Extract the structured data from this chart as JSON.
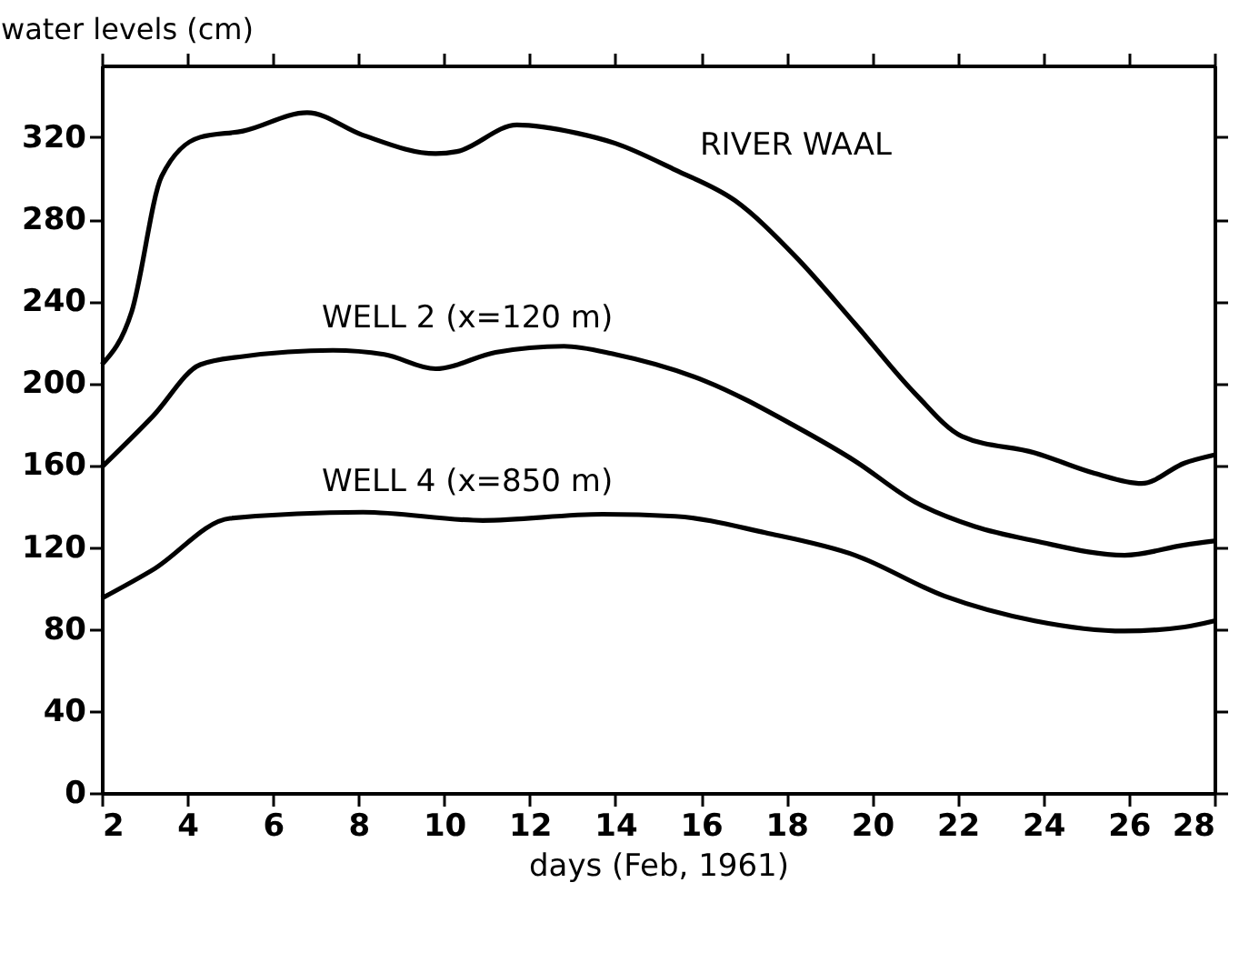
{
  "chart_data": {
    "type": "line",
    "xlabel": "days (Feb, 1961)",
    "ylabel": "water levels (cm)",
    "xlim": [
      2,
      28
    ],
    "ylim": [
      0,
      355
    ],
    "xticks": [
      2,
      4,
      6,
      8,
      10,
      12,
      14,
      16,
      18,
      20,
      22,
      24,
      26,
      28
    ],
    "yticks": [
      0,
      40,
      80,
      120,
      160,
      200,
      240,
      280,
      320
    ],
    "series": [
      {
        "name": "RIVER WAAL",
        "color": "#000000",
        "x": [
          2,
          2.7,
          3.4,
          4.3,
          5.3,
          6.8,
          8.1,
          9.8,
          10.3,
          11.7,
          13.1,
          14,
          15.4,
          16.8,
          18.2,
          19.6,
          21,
          22.1,
          23.8,
          25.2,
          26.3,
          27.3,
          28
        ],
        "values": [
          209,
          235,
          301,
          320,
          323,
          332,
          321,
          312,
          313,
          326,
          322,
          317,
          304,
          289,
          262,
          229,
          195,
          174,
          166,
          156,
          151,
          161,
          165
        ]
      },
      {
        "name": "WELL 2 (x=120 m)",
        "color": "#000000",
        "x": [
          2,
          3.2,
          4.3,
          5.3,
          7.4,
          8.6,
          9.8,
          11.2,
          12.8,
          14,
          16.1,
          18.2,
          19.6,
          21,
          22.4,
          23.8,
          25.9,
          27.3,
          28
        ],
        "values": [
          159,
          184,
          209,
          213,
          216,
          214,
          207,
          215,
          218,
          214,
          201,
          179,
          162,
          142,
          130,
          123,
          116,
          121,
          123
        ]
      },
      {
        "name": "WELL 4 (x=850 m)",
        "color": "#000000",
        "x": [
          2,
          3.2,
          5,
          8.1,
          10.9,
          13.7,
          15.4,
          17.5,
          19.6,
          21.7,
          23.8,
          25.9,
          27.3,
          28
        ],
        "values": [
          95,
          109,
          134,
          137,
          133,
          136,
          135,
          127,
          116,
          96,
          84,
          79,
          81,
          84
        ]
      }
    ]
  }
}
